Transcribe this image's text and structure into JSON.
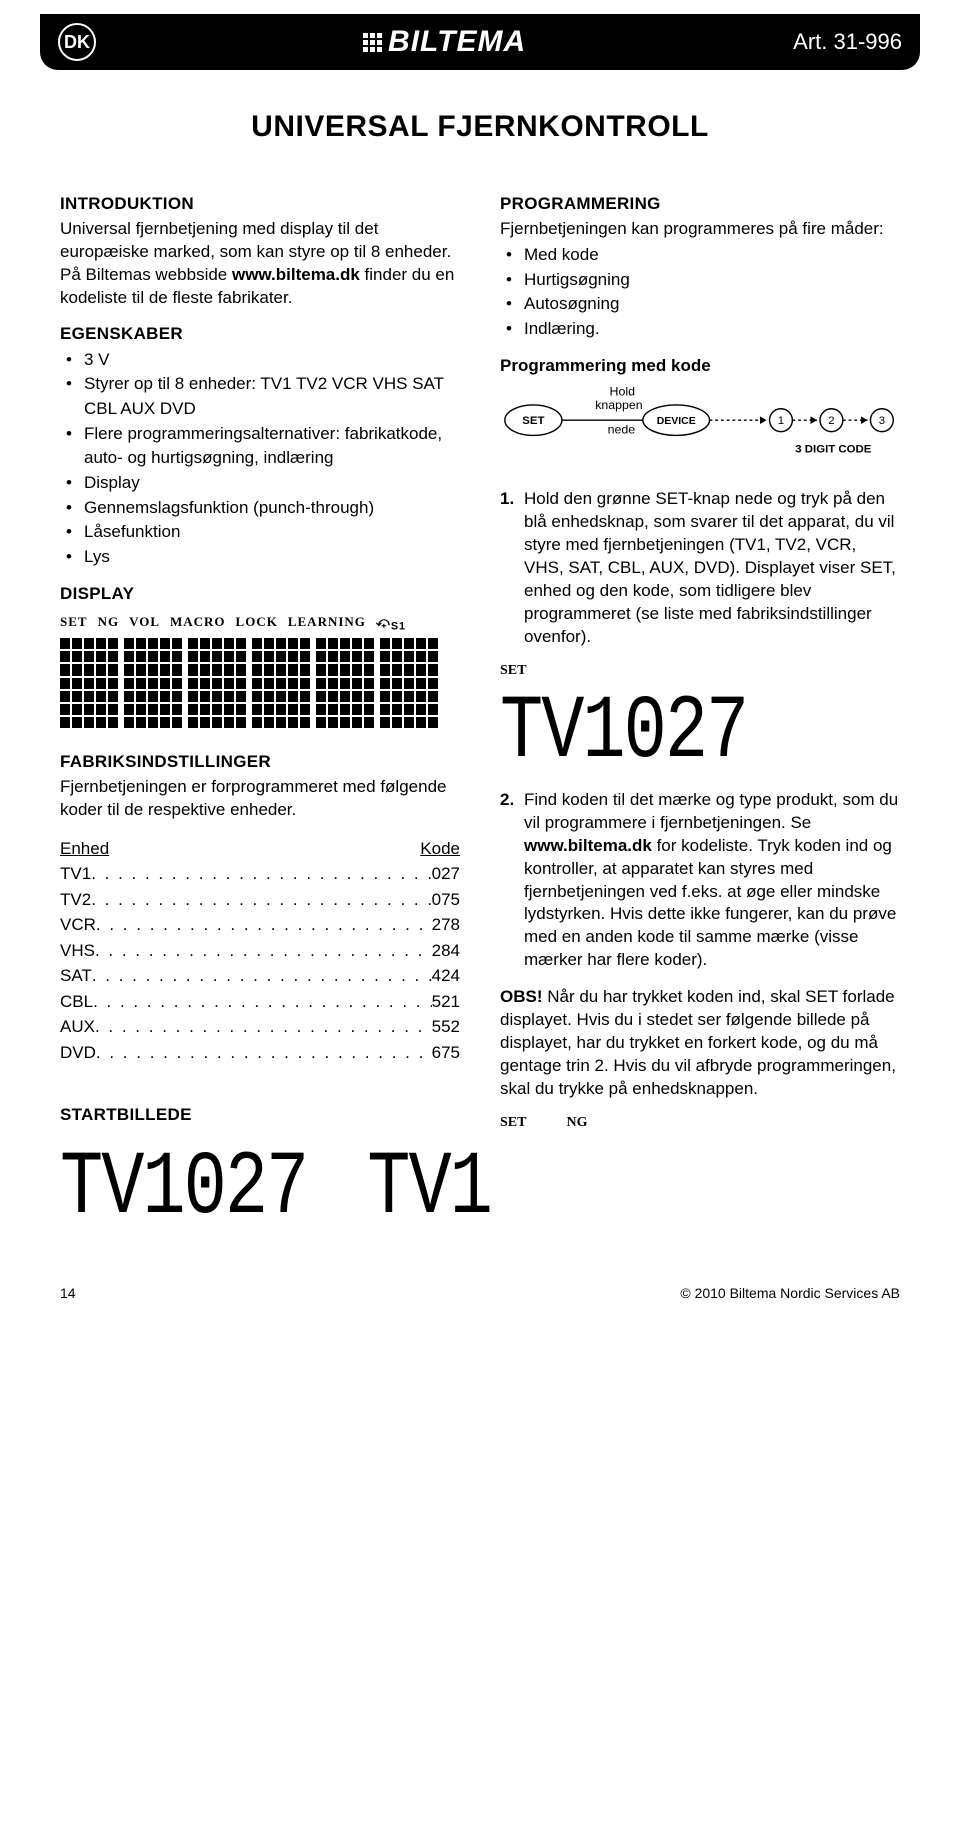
{
  "header": {
    "lang": "DK",
    "brand": "BILTEMA",
    "artno": "Art. 31-996"
  },
  "title": "UNIVERSAL FJERNKONTROLL",
  "left": {
    "intro_h": "INTRODUKTION",
    "intro_body": "Universal fjernbetjening med display til det europæiske marked, som kan styre op til 8 enheder. På Biltemas webbside www.biltema.dk finder du en kodeliste til de fleste fabrikater.",
    "egenskaber_h": "EGENSKABER",
    "egenskaber_items": [
      "3 V",
      "Styrer op til 8 enheder: TV1 TV2 VCR VHS SAT CBL AUX DVD",
      "Flere programmeringsalternativer: fabrikatkode, auto- og hurtigsøgning, indlæring",
      "Display",
      "Gennemslagsfunktion (punch-through)",
      "Låsefunktion",
      "Lys"
    ],
    "display_h": "DISPLAY",
    "display_labels": [
      "SET",
      "NG",
      "VOL",
      "MACRO",
      "LOCK",
      "LEARNING"
    ],
    "fabrik_h": "FABRIKSINDSTILLINGER",
    "fabrik_body": "Fjernbetjeningen er forprogrammeret med følgende koder til de respektive enheder.",
    "table_head_k": "Enhed",
    "table_head_v": "Kode",
    "table": [
      {
        "k": "TV1",
        "v": "027"
      },
      {
        "k": "TV2",
        "v": "075"
      },
      {
        "k": "VCR",
        "v": "278"
      },
      {
        "k": "VHS",
        "v": "284"
      },
      {
        "k": "SAT",
        "v": "424"
      },
      {
        "k": "CBL",
        "v": "521"
      },
      {
        "k": "AUX",
        "v": "552"
      },
      {
        "k": "DVD",
        "v": "675"
      }
    ],
    "start_h": "STARTBILLEDE",
    "seg_bottom": "TV1027"
  },
  "right": {
    "prog_h": "PROGRAMMERING",
    "prog_body": "Fjernbetjeningen kan programmeres på fire måder:",
    "prog_items": [
      "Med kode",
      "Hurtigsøgning",
      "Autosøgning",
      "Indlæring."
    ],
    "prog_kode_h": "Programmering med kode",
    "diagram": {
      "hold": "Hold",
      "knappen": "knappen",
      "nede": "nede",
      "set": "SET",
      "device": "DEVICE",
      "code": "3 DIGIT CODE"
    },
    "step1_num": "1.",
    "step1": "Hold den grønne SET-knap nede og tryk på den blå enhedsknap, som svarer til det apparat, du vil styre med fjernbetjeningen (TV1, TV2, VCR, VHS, SAT, CBL, AUX, DVD). Displayet viser SET, enhed og den kode, som tidligere blev programmeret (se liste med fabriksindstillinger ovenfor).",
    "set_label": "SET",
    "seg_mid": "TV1027",
    "step2_num": "2.",
    "step2": "Find koden til det mærke og type produkt, som du vil programmere i fjernbetjeningen. Se www.biltema.dk for kodeliste. Tryk koden ind og kontroller, at apparatet kan styres med fjernbetjeningen ved f.eks. at øge eller mindske lydstyrken. Hvis dette ikke fungerer, kan du prøve med en anden kode til samme mærke (visse mærker har flere koder).",
    "obs_label": "OBS!",
    "obs_body": " Når du har trykket koden ind, skal SET forlade displayet. Hvis du i stedet ser følgende billede på displayet, har du trykket en forkert kode, og du må gentage trin 2. Hvis du vil afbryde programmeringen, skal du trykke på enhedsknappen.",
    "set_ng": [
      "SET",
      "NG"
    ],
    "seg_bottom": "TV1"
  },
  "footer": {
    "page": "14",
    "copyright": "© 2010 Biltema Nordic Services AB"
  }
}
